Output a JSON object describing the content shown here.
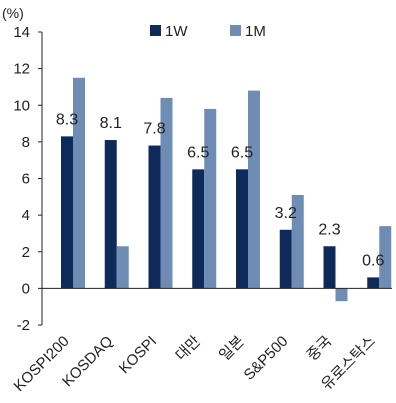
{
  "chart_data": {
    "type": "bar",
    "unit_label": "(%)",
    "categories": [
      "KOSPI200",
      "KOSDAQ",
      "KOSPI",
      "대만",
      "일본",
      "S&P500",
      "중국",
      "유로스탁스"
    ],
    "series": [
      {
        "name": "1W",
        "color": "#0e2a5a",
        "values": [
          8.3,
          8.1,
          7.8,
          6.5,
          6.5,
          3.2,
          2.3,
          0.6
        ]
      },
      {
        "name": "1M",
        "color": "#6f8db4",
        "values": [
          11.5,
          2.3,
          10.4,
          9.8,
          10.8,
          5.1,
          -0.7,
          3.4
        ]
      }
    ],
    "data_labels": [
      "8.3",
      "8.1",
      "7.8",
      "6.5",
      "6.5",
      "3.2",
      "2.3",
      "0.6"
    ],
    "y_ticks": [
      "14",
      "12",
      "10",
      "8",
      "6",
      "4",
      "2",
      "0",
      "-2"
    ],
    "ylim": [
      -2,
      14
    ],
    "legend_position": "top-center",
    "grid": false
  }
}
